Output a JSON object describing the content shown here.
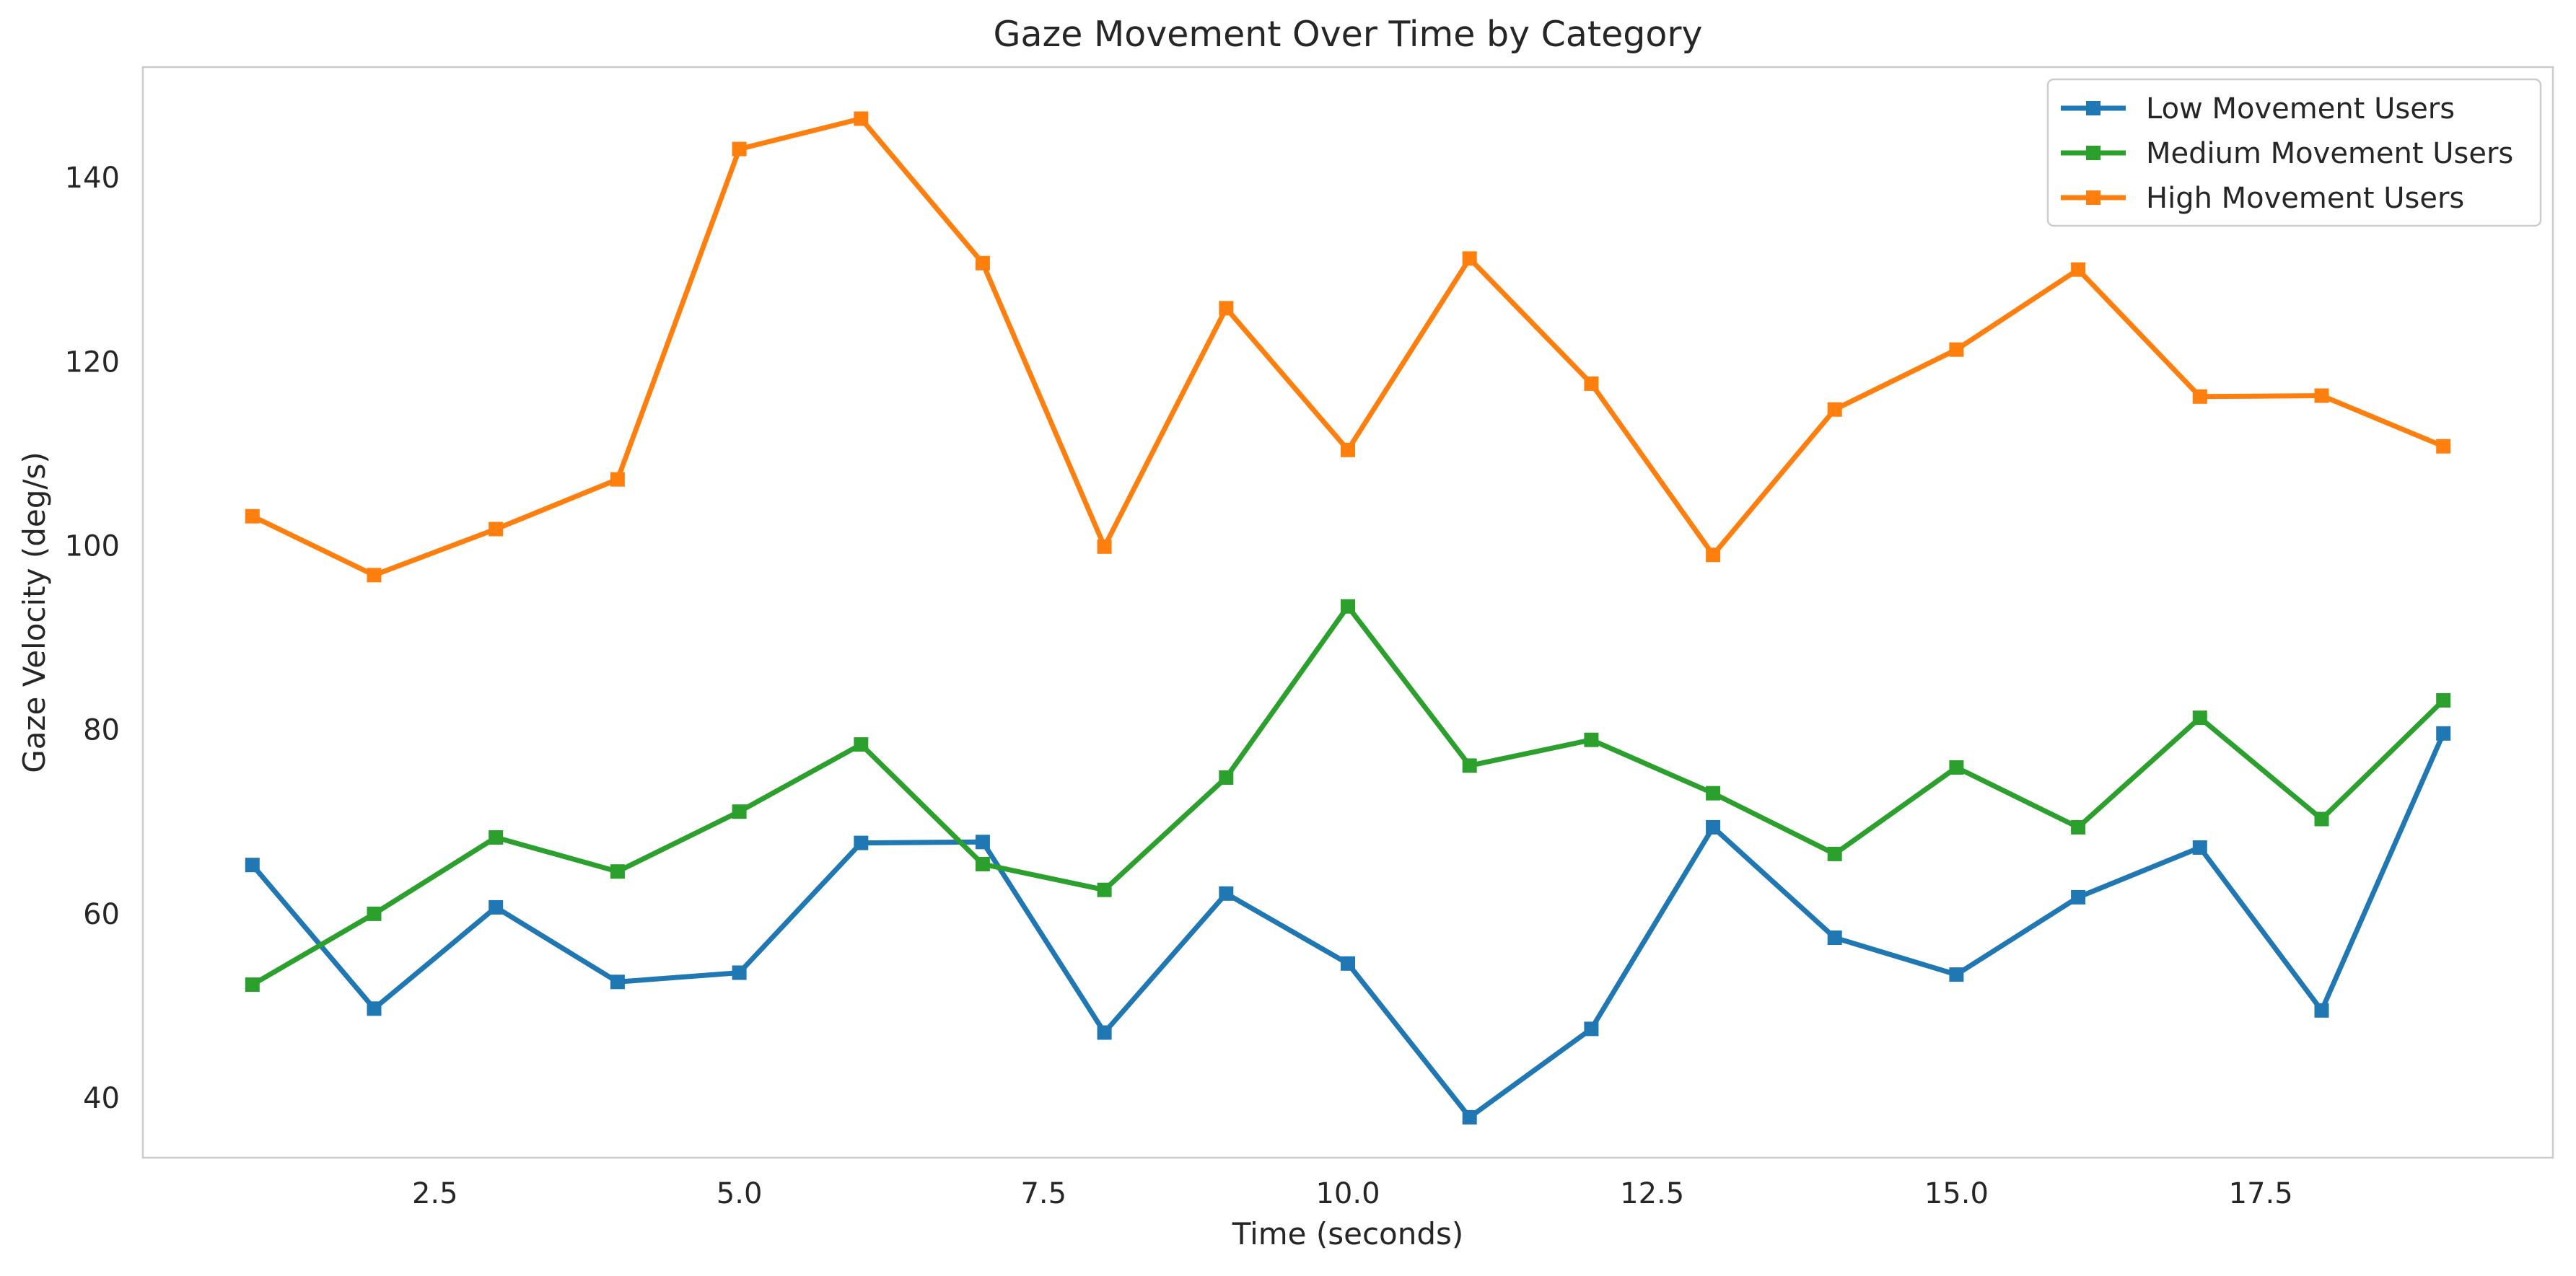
{
  "chart_data": {
    "type": "line",
    "title": "Gaze Movement Over Time by Category",
    "xlabel": "Time (seconds)",
    "ylabel": "Gaze Velocity (deg/s)",
    "x": [
      1,
      2,
      3,
      4,
      5,
      6,
      7,
      8,
      9,
      10,
      11,
      12,
      13,
      14,
      15,
      16,
      17,
      18,
      19
    ],
    "xlim": [
      0.1,
      19.9
    ],
    "ylim": [
      33.5,
      152
    ],
    "xticks": [
      2.5,
      5.0,
      7.5,
      10.0,
      12.5,
      15.0,
      17.5
    ],
    "xtick_labels": [
      "2.5",
      "5.0",
      "7.5",
      "10.0",
      "12.5",
      "15.0",
      "17.5"
    ],
    "yticks": [
      40,
      60,
      80,
      100,
      120,
      140
    ],
    "ytick_labels": [
      "40",
      "60",
      "80",
      "100",
      "120",
      "140"
    ],
    "grid": false,
    "legend_position": "top-right",
    "marker": "square",
    "series": [
      {
        "name": "Low Movement Users",
        "color": "#1f77b4",
        "values": [
          65.3,
          49.7,
          60.7,
          52.6,
          53.6,
          67.7,
          67.8,
          47.1,
          62.2,
          54.6,
          37.9,
          47.5,
          69.4,
          57.4,
          53.4,
          61.8,
          67.2,
          49.5,
          79.6
        ]
      },
      {
        "name": "Medium Movement Users",
        "color": "#2ca02c",
        "values": [
          52.3,
          60.0,
          68.3,
          64.6,
          71.1,
          78.4,
          65.4,
          62.6,
          74.8,
          93.4,
          76.1,
          78.9,
          73.1,
          66.5,
          75.9,
          69.4,
          81.3,
          70.3,
          83.2
        ]
      },
      {
        "name": "High Movement Users",
        "color": "#ff7f0e",
        "values": [
          103.2,
          96.8,
          101.8,
          107.2,
          143.1,
          146.4,
          130.7,
          99.9,
          125.8,
          110.4,
          131.2,
          117.6,
          99.0,
          114.8,
          121.3,
          130.0,
          116.2,
          116.3,
          110.8
        ]
      }
    ]
  }
}
